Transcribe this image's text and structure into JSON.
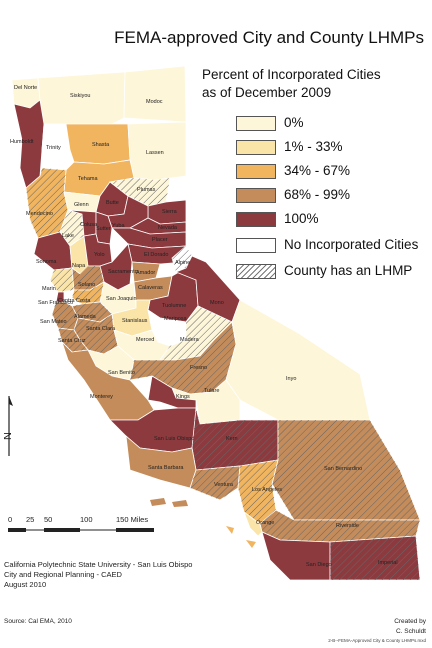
{
  "title": "FEMA-approved City and County LHMPs",
  "subtitle_line1": "Percent of Incorporated Cities",
  "subtitle_line2": "as of December 2009",
  "colors": {
    "c0": "#fdf6d9",
    "c1_33": "#fbe4a8",
    "c34_67": "#f1b45f",
    "c68_99": "#c48c5a",
    "c100": "#8d3a3f",
    "none": "#ffffff",
    "hatch": "#666666"
  },
  "legend": [
    {
      "label": "0%",
      "color": "c0",
      "hatch": false
    },
    {
      "label": "1% - 33%",
      "color": "c1_33",
      "hatch": false
    },
    {
      "label": "34% - 67%",
      "color": "c34_67",
      "hatch": false
    },
    {
      "label": "68% - 99%",
      "color": "c68_99",
      "hatch": false
    },
    {
      "label": "100%",
      "color": "c100",
      "hatch": false
    },
    {
      "label": "No Incorporated Cities",
      "color": "none",
      "hatch": false
    },
    {
      "label": "County has an LHMP",
      "color": "none",
      "hatch": true
    }
  ],
  "counties": [
    {
      "name": "Del Norte",
      "color": "c0",
      "hatch": false
    },
    {
      "name": "Siskiyou",
      "color": "c0",
      "hatch": false
    },
    {
      "name": "Modoc",
      "color": "c0",
      "hatch": false
    },
    {
      "name": "Humboldt",
      "color": "c100",
      "hatch": false
    },
    {
      "name": "Trinity",
      "color": "none",
      "hatch": false
    },
    {
      "name": "Shasta",
      "color": "c34_67",
      "hatch": false
    },
    {
      "name": "Lassen",
      "color": "c0",
      "hatch": false
    },
    {
      "name": "Tehama",
      "color": "c34_67",
      "hatch": false
    },
    {
      "name": "Plumas",
      "color": "c0",
      "hatch": true
    },
    {
      "name": "Mendocino",
      "color": "c34_67",
      "hatch": true
    },
    {
      "name": "Glenn",
      "color": "c0",
      "hatch": false
    },
    {
      "name": "Butte",
      "color": "c100",
      "hatch": false
    },
    {
      "name": "Sierra",
      "color": "c100",
      "hatch": false
    },
    {
      "name": "Lake",
      "color": "c0",
      "hatch": true
    },
    {
      "name": "Colusa",
      "color": "c100",
      "hatch": false
    },
    {
      "name": "Yuba",
      "color": "c100",
      "hatch": false
    },
    {
      "name": "Nevada",
      "color": "c100",
      "hatch": false
    },
    {
      "name": "Placer",
      "color": "c100",
      "hatch": false
    },
    {
      "name": "Sutter",
      "color": "c100",
      "hatch": false
    },
    {
      "name": "Sonoma",
      "color": "c100",
      "hatch": false
    },
    {
      "name": "Napa",
      "color": "c1_33",
      "hatch": false
    },
    {
      "name": "Yolo",
      "color": "c100",
      "hatch": false
    },
    {
      "name": "El Dorado",
      "color": "c100",
      "hatch": false
    },
    {
      "name": "Alpine",
      "color": "none",
      "hatch": true
    },
    {
      "name": "Sacramento",
      "color": "c100",
      "hatch": false
    },
    {
      "name": "Amador",
      "color": "c68_99",
      "hatch": false
    },
    {
      "name": "Marin",
      "color": "c1_33",
      "hatch": true
    },
    {
      "name": "Solano",
      "color": "c68_99",
      "hatch": true
    },
    {
      "name": "San Joaquin",
      "color": "c0",
      "hatch": false
    },
    {
      "name": "Calaveras",
      "color": "c68_99",
      "hatch": false
    },
    {
      "name": "Contra Costa",
      "color": "c34_67",
      "hatch": true
    },
    {
      "name": "San Francisco",
      "color": "c100",
      "hatch": false
    },
    {
      "name": "Alameda",
      "color": "c68_99",
      "hatch": true
    },
    {
      "name": "San Mateo",
      "color": "c68_99",
      "hatch": true
    },
    {
      "name": "Tuolumne",
      "color": "c100",
      "hatch": false
    },
    {
      "name": "Mono",
      "color": "c100",
      "hatch": false
    },
    {
      "name": "Stanislaus",
      "color": "c1_33",
      "hatch": false
    },
    {
      "name": "Mariposa",
      "color": "none",
      "hatch": false
    },
    {
      "name": "Santa Clara",
      "color": "c68_99",
      "hatch": true
    },
    {
      "name": "Santa Cruz",
      "color": "c68_99",
      "hatch": true
    },
    {
      "name": "Merced",
      "color": "c0",
      "hatch": false
    },
    {
      "name": "Madera",
      "color": "c0",
      "hatch": true
    },
    {
      "name": "San Benito",
      "color": "c0",
      "hatch": false
    },
    {
      "name": "Fresno",
      "color": "c68_99",
      "hatch": true
    },
    {
      "name": "Inyo",
      "color": "c0",
      "hatch": false
    },
    {
      "name": "Monterey",
      "color": "c68_99",
      "hatch": false
    },
    {
      "name": "Tulare",
      "color": "c0",
      "hatch": false
    },
    {
      "name": "Kings",
      "color": "c100",
      "hatch": false
    },
    {
      "name": "San Luis Obispo",
      "color": "c100",
      "hatch": false
    },
    {
      "name": "Kern",
      "color": "c100",
      "hatch": true
    },
    {
      "name": "San Bernardino",
      "color": "c68_99",
      "hatch": true
    },
    {
      "name": "Santa Barbara",
      "color": "c68_99",
      "hatch": false
    },
    {
      "name": "Ventura",
      "color": "c68_99",
      "hatch": true
    },
    {
      "name": "Los Angeles",
      "color": "c34_67",
      "hatch": true
    },
    {
      "name": "Riverside",
      "color": "c68_99",
      "hatch": true
    },
    {
      "name": "Orange",
      "color": "c1_33",
      "hatch": false
    },
    {
      "name": "San Diego",
      "color": "c100",
      "hatch": false
    },
    {
      "name": "Imperial",
      "color": "c100",
      "hatch": true
    }
  ],
  "scale_ticks": [
    "0",
    "25",
    "50",
    "100",
    "150 Miles"
  ],
  "north_label": "N",
  "credit_lines": [
    "California Polytechnic State University - San Luis Obispo",
    "City and Regional Planning - CAED",
    "August 2010"
  ],
  "source": "Source: Cal EMA, 2010",
  "created_line1": "Created by",
  "created_line2": "C. Schuldt",
  "filename": "2-B--FEMA-Approved City & County LHMPs.mxd"
}
